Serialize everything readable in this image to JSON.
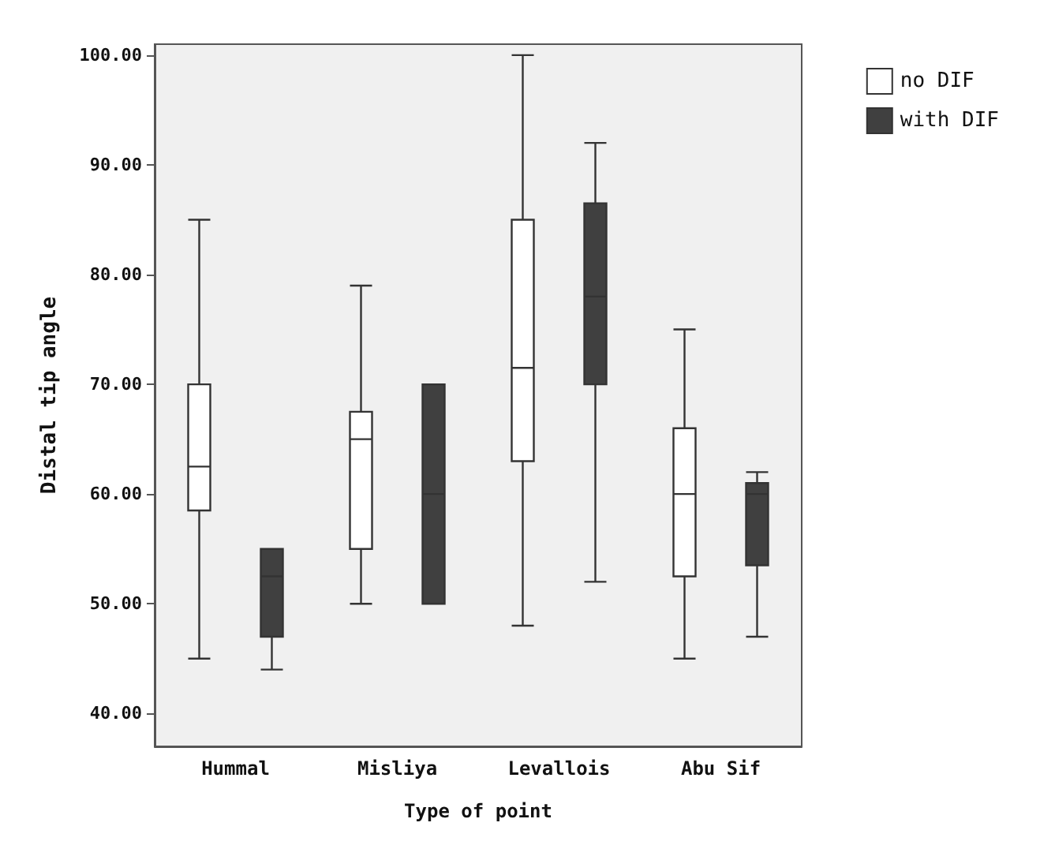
{
  "chart_data": {
    "type": "box",
    "xlabel": "Type of point",
    "ylabel": "Distal tip angle",
    "categories": [
      "Hummal",
      "Misliya",
      "Levallois",
      "Abu Sif"
    ],
    "ylim": [
      37,
      101
    ],
    "yticks": [
      {
        "value": 40,
        "label": "40.00"
      },
      {
        "value": 50,
        "label": "50.00"
      },
      {
        "value": 60,
        "label": "60.00"
      },
      {
        "value": 70,
        "label": "70.00"
      },
      {
        "value": 80,
        "label": "80.00"
      },
      {
        "value": 90,
        "label": "90.00"
      },
      {
        "value": 100,
        "label": "100.00"
      }
    ],
    "legend": "top right",
    "grid": false,
    "series": [
      {
        "name": "no DIF",
        "color": "#ffffff",
        "boxes": [
          {
            "low": 45,
            "q1": 58.5,
            "median": 62.5,
            "q3": 70,
            "high": 85
          },
          {
            "low": 50,
            "q1": 55,
            "median": 65,
            "q3": 67.5,
            "high": 79
          },
          {
            "low": 48,
            "q1": 63,
            "median": 71.5,
            "q3": 85,
            "high": 100
          },
          {
            "low": 45,
            "q1": 52.5,
            "median": 60,
            "q3": 66,
            "high": 75
          }
        ]
      },
      {
        "name": "with DIF",
        "color": "#404040",
        "boxes": [
          {
            "low": 44,
            "q1": 47,
            "median": 52.5,
            "q3": 55,
            "high": 55
          },
          {
            "low": 50,
            "q1": 50,
            "median": 60,
            "q3": 70,
            "high": 70
          },
          {
            "low": 52,
            "q1": 70,
            "median": 78,
            "q3": 86.5,
            "high": 92
          },
          {
            "low": 47,
            "q1": 53.5,
            "median": 60,
            "q3": 61,
            "high": 62
          }
        ]
      }
    ]
  }
}
